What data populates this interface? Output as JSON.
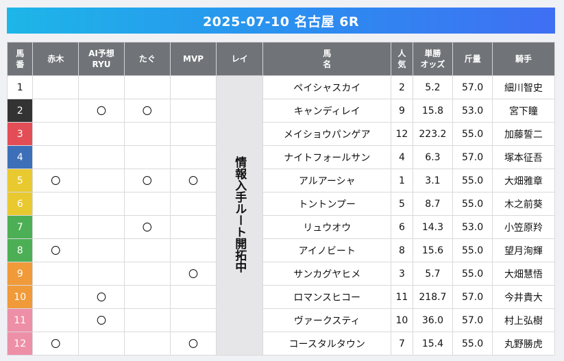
{
  "header": {
    "title": "2025-07-10 名古屋 6R"
  },
  "table": {
    "headers": {
      "umaban": "馬番",
      "akagi": "赤木",
      "ai": "AI予想RYU",
      "tagu": "たぐ",
      "mvp": "MVP",
      "rei": "レイ",
      "horse": "馬名",
      "ninki": "人気",
      "odds": "単勝オッズ",
      "kinryo": "斤量",
      "jockey": "騎手"
    },
    "rei_note": "情報入手ルート開拓中",
    "rows": [
      {
        "num": "1",
        "color": "#ffffff",
        "text_color": "#111111",
        "akagi": "",
        "ai": "",
        "tagu": "",
        "mvp": "",
        "horse": "ペイシャスカイ",
        "ninki": "2",
        "odds": "5.2",
        "kinryo": "57.0",
        "jockey": "細川智史"
      },
      {
        "num": "2",
        "color": "#333333",
        "text_color": "#ffffff",
        "akagi": "",
        "ai": "〇",
        "tagu": "〇",
        "mvp": "",
        "horse": "キャンディレイ",
        "ninki": "9",
        "odds": "15.8",
        "kinryo": "53.0",
        "jockey": "宮下瞳"
      },
      {
        "num": "3",
        "color": "#e34e56",
        "text_color": "#ffffff",
        "akagi": "",
        "ai": "",
        "tagu": "",
        "mvp": "",
        "horse": "メイショウパンゲア",
        "ninki": "12",
        "odds": "223.2",
        "kinryo": "55.0",
        "jockey": "加藤誓二"
      },
      {
        "num": "4",
        "color": "#3d6fb8",
        "text_color": "#ffffff",
        "akagi": "",
        "ai": "",
        "tagu": "",
        "mvp": "",
        "horse": "ナイトフォールサン",
        "ninki": "4",
        "odds": "6.3",
        "kinryo": "57.0",
        "jockey": "塚本征吾"
      },
      {
        "num": "5",
        "color": "#e9c930",
        "text_color": "#ffffff",
        "akagi": "〇",
        "ai": "",
        "tagu": "〇",
        "mvp": "〇",
        "horse": "アルアーシャ",
        "ninki": "1",
        "odds": "3.1",
        "kinryo": "55.0",
        "jockey": "大畑雅章"
      },
      {
        "num": "6",
        "color": "#e9c930",
        "text_color": "#ffffff",
        "akagi": "",
        "ai": "",
        "tagu": "",
        "mvp": "",
        "horse": "トントンプー",
        "ninki": "5",
        "odds": "8.7",
        "kinryo": "55.0",
        "jockey": "木之前葵"
      },
      {
        "num": "7",
        "color": "#4caf55",
        "text_color": "#ffffff",
        "akagi": "",
        "ai": "",
        "tagu": "〇",
        "mvp": "",
        "horse": "リュウオウ",
        "ninki": "6",
        "odds": "14.3",
        "kinryo": "53.0",
        "jockey": "小笠原羚"
      },
      {
        "num": "8",
        "color": "#4caf55",
        "text_color": "#ffffff",
        "akagi": "〇",
        "ai": "",
        "tagu": "",
        "mvp": "",
        "horse": "アイノビート",
        "ninki": "8",
        "odds": "15.6",
        "kinryo": "55.0",
        "jockey": "望月洵輝"
      },
      {
        "num": "9",
        "color": "#f09a3a",
        "text_color": "#ffffff",
        "akagi": "",
        "ai": "",
        "tagu": "",
        "mvp": "〇",
        "horse": "サンカグヤヒメ",
        "ninki": "3",
        "odds": "5.7",
        "kinryo": "55.0",
        "jockey": "大畑慧悟"
      },
      {
        "num": "10",
        "color": "#f09a3a",
        "text_color": "#ffffff",
        "akagi": "",
        "ai": "〇",
        "tagu": "",
        "mvp": "",
        "horse": "ロマンスヒコー",
        "ninki": "11",
        "odds": "218.7",
        "kinryo": "57.0",
        "jockey": "今井貴大"
      },
      {
        "num": "11",
        "color": "#ee8fa8",
        "text_color": "#ffffff",
        "akagi": "",
        "ai": "〇",
        "tagu": "",
        "mvp": "",
        "horse": "ヴァークスティ",
        "ninki": "10",
        "odds": "36.0",
        "kinryo": "57.0",
        "jockey": "村上弘樹"
      },
      {
        "num": "12",
        "color": "#ee8fa8",
        "text_color": "#ffffff",
        "akagi": "〇",
        "ai": "",
        "tagu": "",
        "mvp": "〇",
        "horse": "コースタルタウン",
        "ninki": "7",
        "odds": "15.4",
        "kinryo": "55.0",
        "jockey": "丸野勝虎"
      }
    ]
  }
}
